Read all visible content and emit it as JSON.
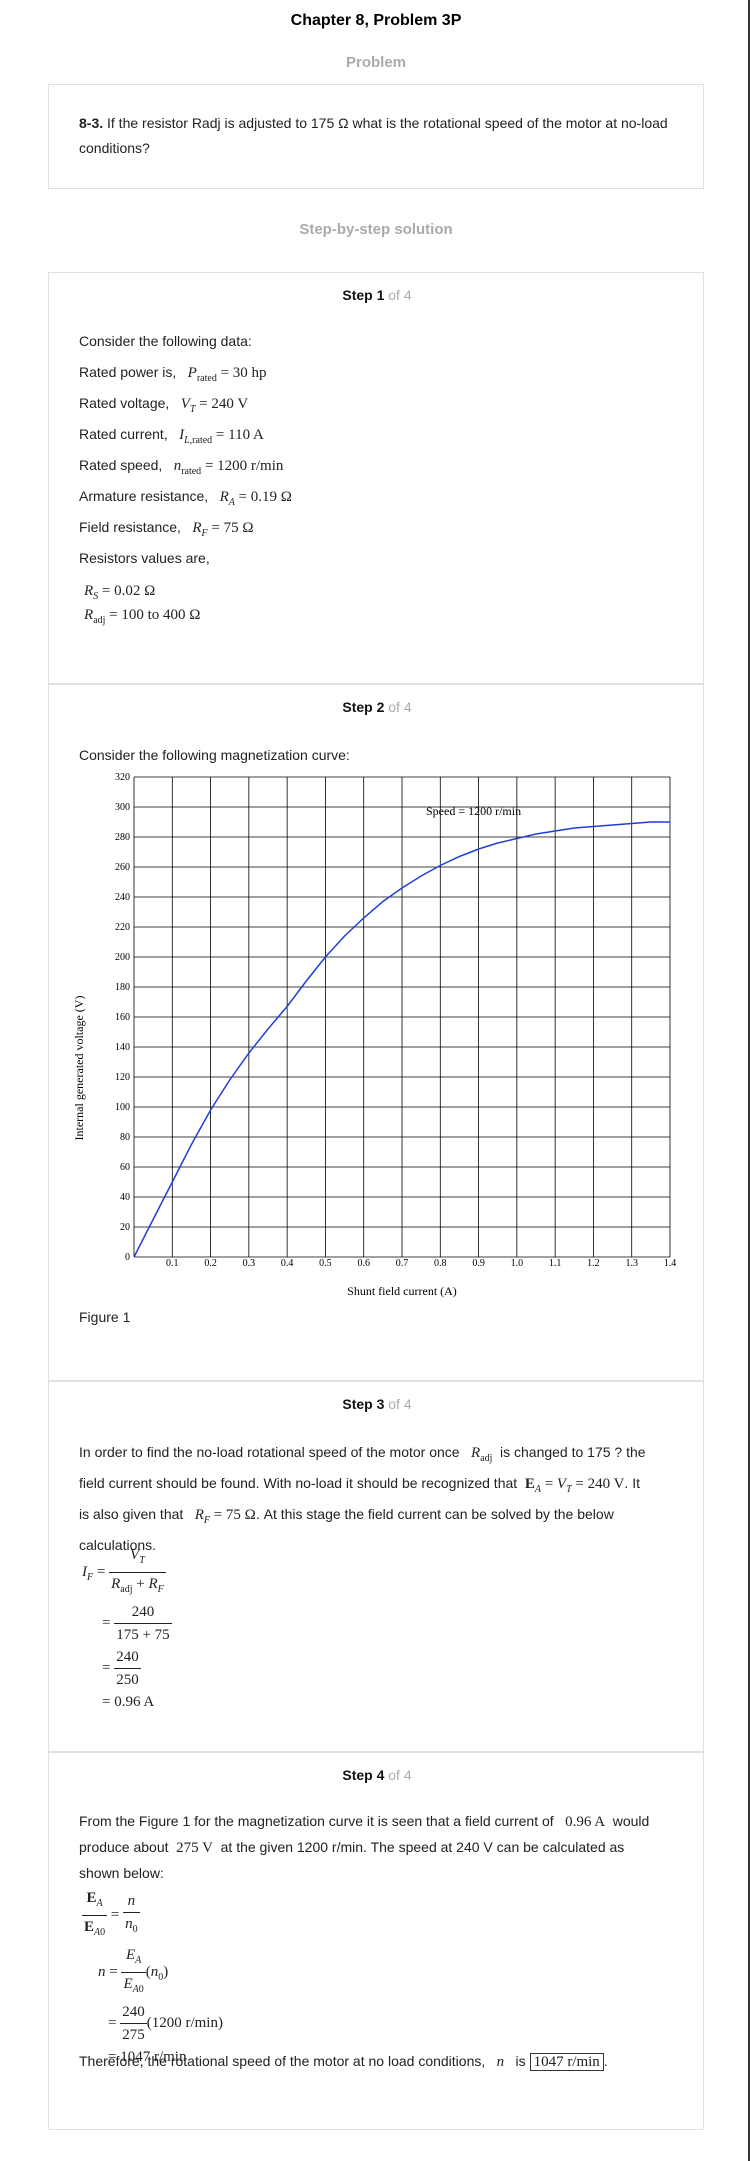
{
  "header": {
    "title": "Chapter 8, Problem 3P",
    "problem_heading": "Problem",
    "solution_heading": "Step-by-step solution"
  },
  "problem": {
    "number": "8-3.",
    "text": "If the resistor Radj is adjusted to 175 Ω what is the rotational speed of the motor at no-load conditions?"
  },
  "steps": [
    {
      "label": "Step 1",
      "of": "of 4"
    },
    {
      "label": "Step 2",
      "of": "of 4"
    },
    {
      "label": "Step 3",
      "of": "of 4"
    },
    {
      "label": "Step 4",
      "of": "of 4"
    }
  ],
  "step1": {
    "intro": "Consider the following data:",
    "rated_power": "Rated power is,",
    "rated_voltage": "Rated voltage,",
    "rated_current": "Rated current,",
    "rated_speed": "Rated speed,",
    "armature": "Armature resistance,",
    "field": "Field resistance,",
    "resistors": "Resistors values are,"
  },
  "step2": {
    "intro": "Consider the following magnetization curve:",
    "figure_caption": "Figure 1"
  },
  "chart_data": {
    "type": "line",
    "title": "",
    "annotation": "Speed = 1200 r/min",
    "xlabel": "Shunt field current (A)",
    "ylabel": "Internal generated voltage (V)",
    "xlim": [
      0,
      1.4
    ],
    "ylim": [
      0,
      320
    ],
    "x_ticks": [
      "0.1",
      "0.2",
      "0.3",
      "0.4",
      "0.5",
      "0.6",
      "0.7",
      "0.8",
      "0.9",
      "1.0",
      "1.1",
      "1.2",
      "1.3",
      "1.4"
    ],
    "y_ticks": [
      "0",
      "20",
      "40",
      "60",
      "80",
      "100",
      "120",
      "140",
      "160",
      "180",
      "200",
      "220",
      "240",
      "260",
      "280",
      "300",
      "320"
    ],
    "grid": true,
    "series": [
      {
        "color": "#1f3fd6",
        "x": [
          0,
          0.05,
          0.1,
          0.15,
          0.2,
          0.25,
          0.3,
          0.35,
          0.4,
          0.45,
          0.5,
          0.55,
          0.6,
          0.65,
          0.7,
          0.75,
          0.8,
          0.85,
          0.9,
          0.95,
          1.0,
          1.05,
          1.1,
          1.15,
          1.2,
          1.25,
          1.3,
          1.35,
          1.4
        ],
        "y": [
          0,
          25,
          50,
          75,
          98,
          118,
          136,
          152,
          167,
          184,
          200,
          214,
          226,
          237,
          246,
          254,
          261,
          267,
          272,
          276,
          279,
          282,
          284,
          286,
          287,
          288,
          289,
          290,
          290
        ]
      }
    ]
  },
  "step3": {
    "p1": "In order to find the no-load rotational speed of the motor once",
    "p2": "is changed to 175 ? the",
    "p3": "field current should be found. With no-load it should be recognized that",
    "p4": ". It",
    "p5": "is also given that",
    "p6": ". At this stage the field current can be solved by the below",
    "p7": "calculations."
  },
  "step4": {
    "p1": "From the Figure 1 for the magnetization curve it is seen that a field current of",
    "p2": "would",
    "p3": "produce about",
    "p4": "at the given 1200 r/min. The speed at 240 V can be calculated as",
    "p5": "shown below:",
    "conclusion": "Therefore, the rotational speed of the motor at no load conditions,",
    "is_word": "is",
    "answer": "1047 r/min"
  }
}
